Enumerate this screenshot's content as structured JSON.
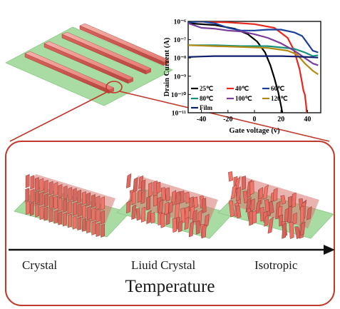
{
  "inset_chart": {
    "type": "line",
    "xlabel": "Gate voltage (v)",
    "ylabel": "Drain Current (A)",
    "x_ticks": [
      "-40",
      "-20",
      "0",
      "20",
      "40"
    ],
    "y_ticks": [
      "10⁻¹¹",
      "10⁻¹⁰",
      "10⁻⁹",
      "10⁻⁸",
      "10⁻⁷",
      "10⁻⁶"
    ],
    "xlim": [
      -50,
      50
    ],
    "ylim_log10": [
      -11,
      -6
    ],
    "scale_y": "log",
    "legend_placement": "bottom-left",
    "series": [
      {
        "name": "25℃",
        "color": "#000000",
        "x": [
          -50,
          -30,
          -15,
          -5,
          2,
          8,
          12,
          15,
          18,
          20,
          21,
          22
        ],
        "y": [
          -6.1,
          -6.2,
          -6.4,
          -6.7,
          -7.1,
          -7.7,
          -8.4,
          -9.1,
          -9.9,
          -10.6,
          -11.0,
          -11.6
        ]
      },
      {
        "name": "40℃",
        "color": "#e8261c",
        "x": [
          -50,
          -20,
          0,
          15,
          25,
          30,
          34,
          36,
          37,
          38,
          39,
          40
        ],
        "y": [
          -6.0,
          -6.05,
          -6.15,
          -6.35,
          -6.9,
          -7.6,
          -8.6,
          -9.4,
          -9.8,
          -10.0,
          -10.6,
          -11.6
        ]
      },
      {
        "name": "60℃",
        "color": "#1b3f9c",
        "x": [
          -50,
          -40,
          -30,
          -20,
          -10,
          0,
          10,
          20,
          30,
          36,
          40,
          44,
          48
        ],
        "y": [
          -6.05,
          -6.0,
          -6.1,
          -6.35,
          -6.5,
          -6.5,
          -6.45,
          -6.45,
          -6.6,
          -6.8,
          -7.2,
          -7.6,
          -7.7
        ]
      },
      {
        "name": "80℃",
        "color": "#17937d",
        "x": [
          -50,
          -30,
          -10,
          10,
          30,
          38,
          44,
          48
        ],
        "y": [
          -7.3,
          -7.3,
          -7.35,
          -7.35,
          -7.5,
          -7.7,
          -7.9,
          -7.85
        ]
      },
      {
        "name": "100℃",
        "color": "#7a3d9a",
        "x": [
          -50,
          -40,
          -30,
          -20,
          -10,
          0,
          10,
          20,
          30,
          38,
          44,
          48
        ],
        "y": [
          -6.1,
          -6.35,
          -6.4,
          -6.5,
          -6.55,
          -6.7,
          -6.9,
          -7.2,
          -7.6,
          -8.0,
          -8.3,
          -8.4
        ]
      },
      {
        "name": "120℃",
        "color": "#b28a14",
        "x": [
          -50,
          -30,
          -10,
          10,
          25,
          32,
          38,
          44,
          48
        ],
        "y": [
          -7.3,
          -7.35,
          -7.4,
          -7.45,
          -7.6,
          -7.8,
          -8.3,
          -8.7,
          -8.9
        ]
      },
      {
        "name": "Film",
        "color": "#0f1f6e",
        "x": [
          -50,
          -40,
          -30,
          -20,
          -10,
          0,
          10,
          20,
          30,
          40,
          48
        ],
        "y": [
          -7.95,
          -7.92,
          -7.9,
          -7.9,
          -7.9,
          -7.9,
          -7.9,
          -7.9,
          -7.92,
          -7.95,
          -7.98
        ]
      }
    ]
  },
  "stages": {
    "crystal": "Crystal",
    "liquid_crystal": "Liuid Crystal",
    "isotropic": "Isotropic"
  },
  "axis_title": "Temperature",
  "colors": {
    "substrate": "#a8dca2",
    "rod": "#e37a72",
    "frame": "#c0392b",
    "arrow": "#111111"
  }
}
